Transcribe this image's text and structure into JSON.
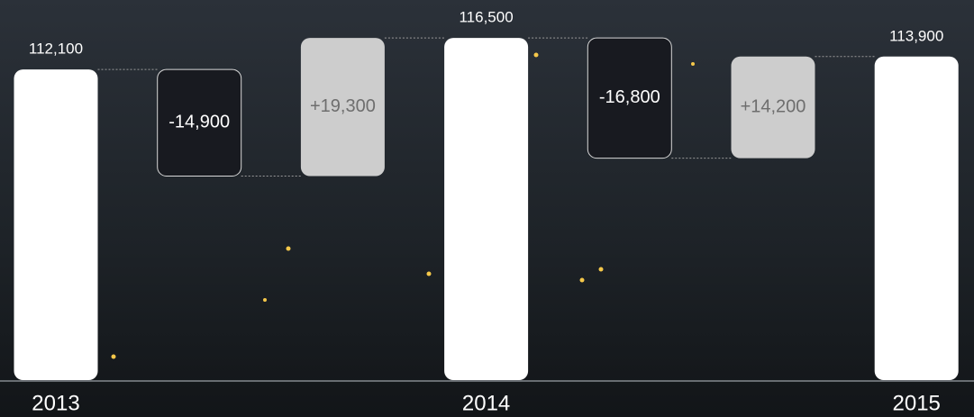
{
  "chart_data": {
    "type": "waterfall",
    "categories": [
      "2013",
      null,
      null,
      "2014",
      null,
      null,
      "2015"
    ],
    "values": [
      112100,
      -14900,
      19300,
      116500,
      -16800,
      14200,
      113900
    ],
    "value_labels": [
      "112,100",
      "-14,900",
      "+19,300",
      "116,500",
      "-16,800",
      "+14,200",
      "113,900"
    ],
    "ylim": [
      68700,
      121800
    ],
    "colors": {
      "total": "#ffffff",
      "decrease": "#181a20",
      "increase": "#cdcdcd"
    }
  }
}
